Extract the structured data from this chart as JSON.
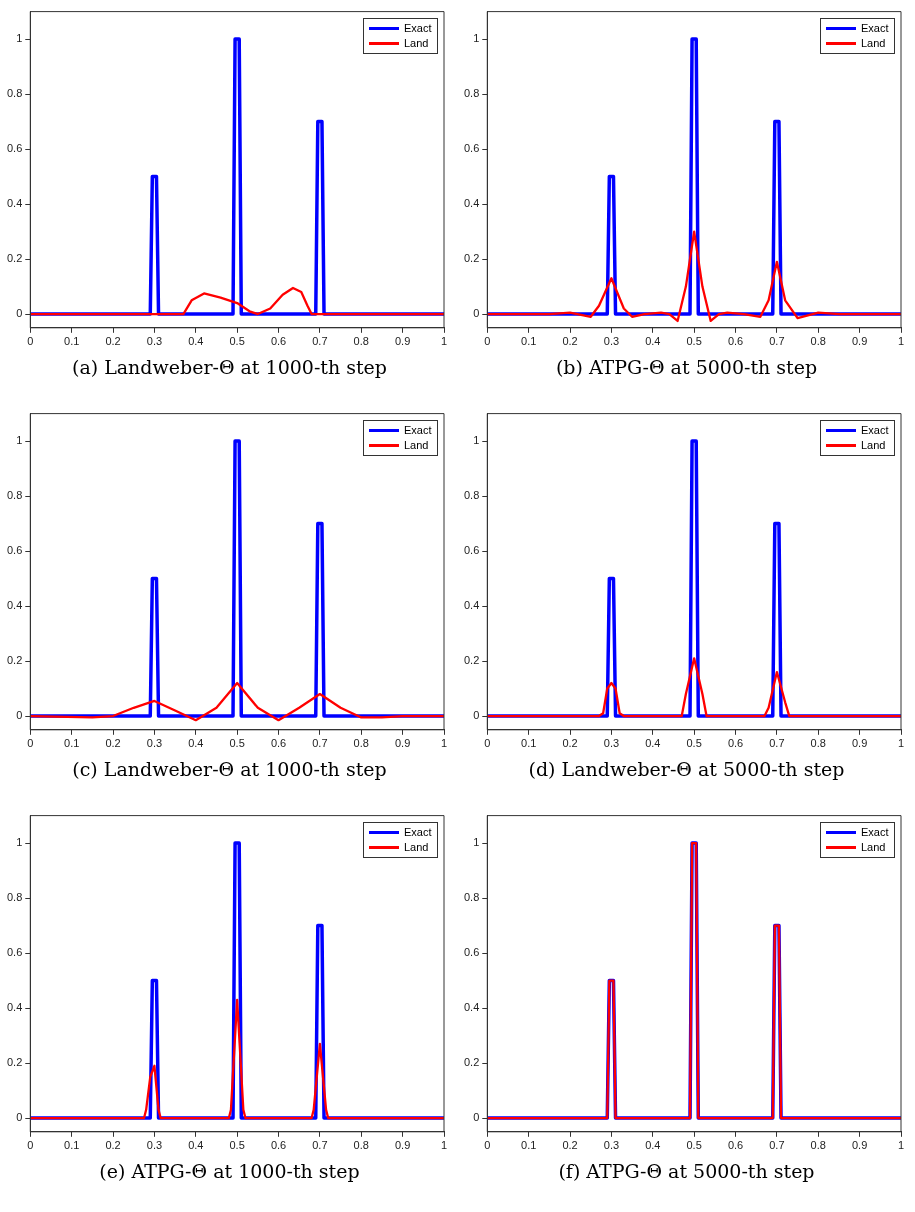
{
  "chart_data": [
    {
      "type": "line",
      "title": "(a) Landweber-Θ at 1000-th step",
      "xlim": [
        0,
        1
      ],
      "ylim": [
        -0.05,
        1.1
      ],
      "xticks": [
        0,
        0.1,
        0.2,
        0.3,
        0.4,
        0.5,
        0.6,
        0.7,
        0.8,
        0.9,
        1
      ],
      "yticks": [
        0,
        0.2,
        0.4,
        0.6,
        0.8,
        1
      ],
      "grid": false,
      "legend": "top right",
      "marker": "none",
      "line_style": "solid",
      "series": [
        {
          "name": "Exact",
          "color": "#0000ff",
          "x": [
            0,
            0.29,
            0.295,
            0.305,
            0.31,
            0.49,
            0.495,
            0.505,
            0.51,
            0.69,
            0.695,
            0.705,
            0.71,
            1
          ],
          "values": [
            0,
            0,
            0.5,
            0.5,
            0,
            0,
            1,
            1,
            0,
            0,
            0.7,
            0.7,
            0,
            0
          ]
        },
        {
          "name": "Land",
          "color": "#ff0000",
          "x": [
            0,
            0.37,
            0.39,
            0.42,
            0.46,
            0.5,
            0.53,
            0.55,
            0.58,
            0.61,
            0.635,
            0.655,
            0.67,
            0.68,
            1
          ],
          "values": [
            0,
            0,
            0.05,
            0.075,
            0.06,
            0.04,
            0.01,
            0,
            0.02,
            0.07,
            0.095,
            0.08,
            0.03,
            0,
            0
          ]
        }
      ]
    },
    {
      "type": "line",
      "title": "(b) ATPG-Θ at 5000-th step",
      "xlim": [
        0,
        1
      ],
      "ylim": [
        -0.05,
        1.1
      ],
      "xticks": [
        0,
        0.1,
        0.2,
        0.3,
        0.4,
        0.5,
        0.6,
        0.7,
        0.8,
        0.9,
        1
      ],
      "yticks": [
        0,
        0.2,
        0.4,
        0.6,
        0.8,
        1
      ],
      "grid": false,
      "legend": "top right",
      "marker": "none",
      "line_style": "solid",
      "series": [
        {
          "name": "Exact",
          "color": "#0000ff",
          "x": [
            0,
            0.29,
            0.295,
            0.305,
            0.31,
            0.49,
            0.495,
            0.505,
            0.51,
            0.69,
            0.695,
            0.705,
            0.71,
            1
          ],
          "values": [
            0,
            0,
            0.5,
            0.5,
            0,
            0,
            1,
            1,
            0,
            0,
            0.7,
            0.7,
            0,
            0
          ]
        },
        {
          "name": "Land",
          "color": "#ff0000",
          "x": [
            0,
            0.15,
            0.2,
            0.25,
            0.27,
            0.3,
            0.33,
            0.35,
            0.38,
            0.42,
            0.44,
            0.46,
            0.48,
            0.5,
            0.52,
            0.54,
            0.56,
            0.58,
            0.62,
            0.66,
            0.68,
            0.7,
            0.72,
            0.75,
            0.8,
            0.85,
            1
          ],
          "values": [
            0,
            0,
            0.005,
            -0.01,
            0.03,
            0.13,
            0.02,
            -0.01,
            0,
            0.005,
            0,
            -0.025,
            0.1,
            0.3,
            0.1,
            -0.025,
            0,
            0.005,
            0,
            -0.01,
            0.05,
            0.19,
            0.05,
            -0.015,
            0.005,
            0,
            0
          ]
        }
      ]
    },
    {
      "type": "line",
      "title": "(c) Landweber-Θ at 1000-th step",
      "xlim": [
        0,
        1
      ],
      "ylim": [
        -0.05,
        1.1
      ],
      "xticks": [
        0,
        0.1,
        0.2,
        0.3,
        0.4,
        0.5,
        0.6,
        0.7,
        0.8,
        0.9,
        1
      ],
      "yticks": [
        0,
        0.2,
        0.4,
        0.6,
        0.8,
        1
      ],
      "grid": false,
      "legend": "top right",
      "marker": "none",
      "line_style": "solid",
      "series": [
        {
          "name": "Exact",
          "color": "#0000ff",
          "x": [
            0,
            0.29,
            0.295,
            0.305,
            0.31,
            0.49,
            0.495,
            0.505,
            0.51,
            0.69,
            0.695,
            0.705,
            0.71,
            1
          ],
          "values": [
            0,
            0,
            0.5,
            0.5,
            0,
            0,
            1,
            1,
            0,
            0,
            0.7,
            0.7,
            0,
            0
          ]
        },
        {
          "name": "Land",
          "color": "#ff0000",
          "x": [
            0,
            0.15,
            0.2,
            0.25,
            0.3,
            0.35,
            0.4,
            0.45,
            0.5,
            0.55,
            0.6,
            0.65,
            0.7,
            0.75,
            0.8,
            0.85,
            0.9,
            1
          ],
          "values": [
            0,
            -0.005,
            0,
            0.03,
            0.055,
            0.02,
            -0.015,
            0.03,
            0.12,
            0.03,
            -0.015,
            0.03,
            0.08,
            0.03,
            -0.005,
            -0.005,
            0,
            0
          ]
        }
      ]
    },
    {
      "type": "line",
      "title": "(d) Landweber-Θ at 5000-th step",
      "xlim": [
        0,
        1
      ],
      "ylim": [
        -0.05,
        1.1
      ],
      "xticks": [
        0,
        0.1,
        0.2,
        0.3,
        0.4,
        0.5,
        0.6,
        0.7,
        0.8,
        0.9,
        1
      ],
      "yticks": [
        0,
        0.2,
        0.4,
        0.6,
        0.8,
        1
      ],
      "grid": false,
      "legend": "top right",
      "marker": "none",
      "line_style": "solid",
      "series": [
        {
          "name": "Exact",
          "color": "#0000ff",
          "x": [
            0,
            0.29,
            0.295,
            0.305,
            0.31,
            0.49,
            0.495,
            0.505,
            0.51,
            0.69,
            0.695,
            0.705,
            0.71,
            1
          ],
          "values": [
            0,
            0,
            0.5,
            0.5,
            0,
            0,
            1,
            1,
            0,
            0,
            0.7,
            0.7,
            0,
            0
          ]
        },
        {
          "name": "Land",
          "color": "#ff0000",
          "x": [
            0,
            0.27,
            0.28,
            0.29,
            0.3,
            0.31,
            0.32,
            0.33,
            0.47,
            0.48,
            0.5,
            0.52,
            0.53,
            0.67,
            0.68,
            0.7,
            0.72,
            0.73,
            1
          ],
          "values": [
            0,
            0,
            0.01,
            0.1,
            0.12,
            0.1,
            0.01,
            0,
            0,
            0.08,
            0.21,
            0.08,
            0,
            0,
            0.03,
            0.16,
            0.05,
            0,
            0
          ]
        }
      ]
    },
    {
      "type": "line",
      "title": "(e) ATPG-Θ at 1000-th step",
      "xlim": [
        0,
        1
      ],
      "ylim": [
        -0.05,
        1.1
      ],
      "xticks": [
        0,
        0.1,
        0.2,
        0.3,
        0.4,
        0.5,
        0.6,
        0.7,
        0.8,
        0.9,
        1
      ],
      "yticks": [
        0,
        0.2,
        0.4,
        0.6,
        0.8,
        1
      ],
      "grid": false,
      "legend": "top right",
      "marker": "none",
      "line_style": "solid",
      "series": [
        {
          "name": "Exact",
          "color": "#0000ff",
          "x": [
            0,
            0.29,
            0.295,
            0.305,
            0.31,
            0.49,
            0.495,
            0.505,
            0.51,
            0.69,
            0.695,
            0.705,
            0.71,
            1
          ],
          "values": [
            0,
            0,
            0.5,
            0.5,
            0,
            0,
            1,
            1,
            0,
            0,
            0.7,
            0.7,
            0,
            0
          ]
        },
        {
          "name": "Land",
          "color": "#ff0000",
          "x": [
            0,
            0.275,
            0.28,
            0.29,
            0.3,
            0.31,
            0.315,
            0.48,
            0.485,
            0.5,
            0.515,
            0.52,
            0.68,
            0.685,
            0.7,
            0.715,
            0.72,
            1
          ],
          "values": [
            0,
            0,
            0.03,
            0.15,
            0.19,
            0.03,
            0,
            0,
            0.03,
            0.43,
            0.03,
            0,
            0,
            0.03,
            0.27,
            0.03,
            0,
            0
          ]
        }
      ]
    },
    {
      "type": "line",
      "title": "(f) ATPG-Θ at 5000-th step",
      "xlim": [
        0,
        1
      ],
      "ylim": [
        -0.05,
        1.1
      ],
      "xticks": [
        0,
        0.1,
        0.2,
        0.3,
        0.4,
        0.5,
        0.6,
        0.7,
        0.8,
        0.9,
        1
      ],
      "yticks": [
        0,
        0.2,
        0.4,
        0.6,
        0.8,
        1
      ],
      "grid": false,
      "legend": "top right",
      "marker": "none",
      "line_style": "solid",
      "series": [
        {
          "name": "Exact",
          "color": "#0000ff",
          "x": [
            0,
            0.29,
            0.295,
            0.305,
            0.31,
            0.49,
            0.495,
            0.505,
            0.51,
            0.69,
            0.695,
            0.705,
            0.71,
            1
          ],
          "values": [
            0,
            0,
            0.5,
            0.5,
            0,
            0,
            1,
            1,
            0,
            0,
            0.7,
            0.7,
            0,
            0
          ]
        },
        {
          "name": "Land",
          "color": "#ff0000",
          "x": [
            0,
            0.29,
            0.295,
            0.305,
            0.31,
            0.49,
            0.495,
            0.505,
            0.51,
            0.69,
            0.695,
            0.705,
            0.71,
            1
          ],
          "values": [
            0,
            0,
            0.5,
            0.5,
            0,
            0,
            1,
            1,
            0,
            0,
            0.7,
            0.7,
            0,
            0
          ]
        }
      ]
    }
  ]
}
